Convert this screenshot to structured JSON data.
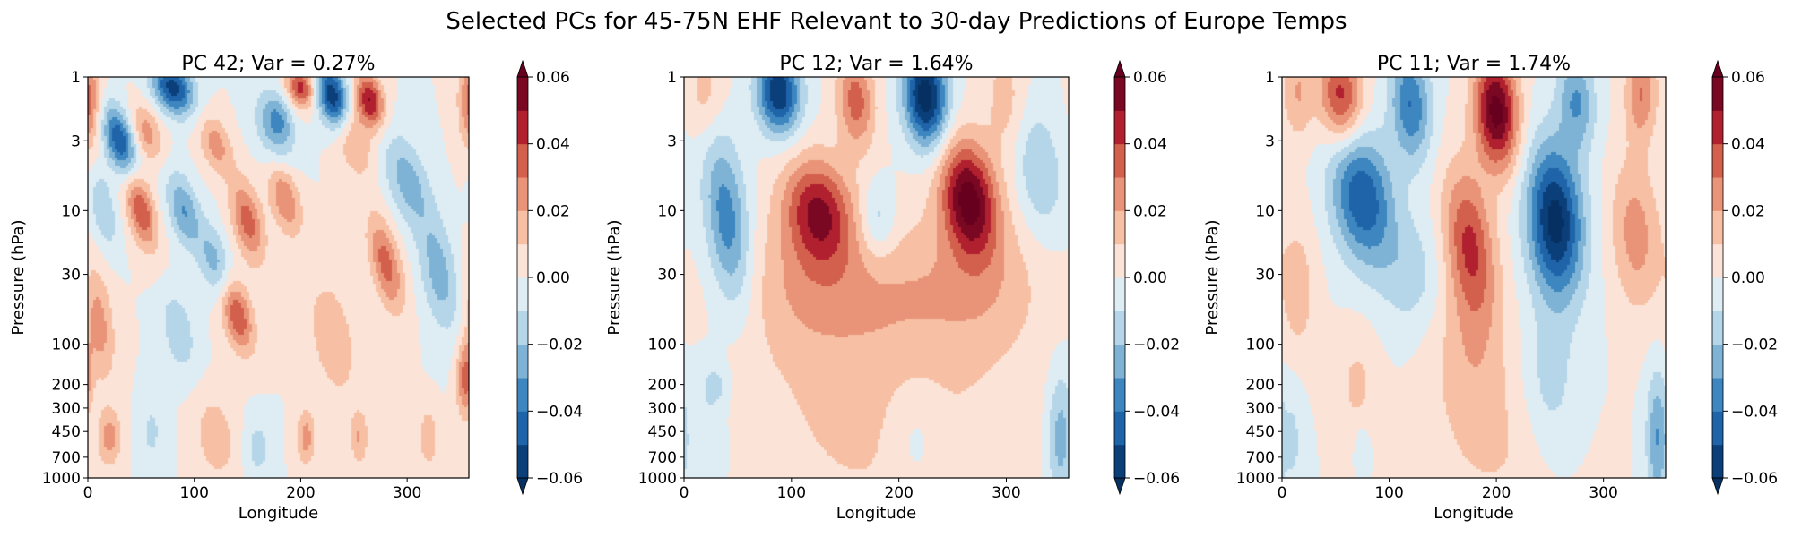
{
  "suptitle": "Selected PCs for 45-75N EHF Relevant to 30-day Predictions of Europe Temps",
  "levels": [
    -0.06,
    -0.05,
    -0.04,
    -0.03,
    -0.02,
    -0.01,
    0.0,
    0.01,
    0.02,
    0.03,
    0.04,
    0.05,
    0.06
  ],
  "band_colors": [
    "#0b3f7a",
    "#1f64a8",
    "#3d86c0",
    "#7fb3d6",
    "#b5d6e8",
    "#deecf4",
    "#fbe3d7",
    "#f7c0a4",
    "#e99478",
    "#d2604d",
    "#b1202e",
    "#7a0822"
  ],
  "colors": {
    "under": "#053061",
    "over": "#67001f",
    "axis": "#000000",
    "background": "#ffffff"
  },
  "chart_data": [
    {
      "type": "heatmap",
      "title": "PC 42; Var = 0.27%",
      "xlabel": "Longitude",
      "ylabel": "Pressure (hPa)",
      "xlim": [
        0,
        358
      ],
      "ylim": [
        1000,
        1
      ],
      "xticks": [
        0,
        100,
        200,
        300
      ],
      "yticks": [
        1,
        3,
        10,
        30,
        100,
        200,
        300,
        450,
        700,
        1000
      ],
      "colorbar_ticks": [
        "0.06",
        "0.04",
        "0.02",
        "0.00",
        "−0.02",
        "−0.04",
        "−0.06"
      ],
      "blobs": [
        {
          "lon": 80,
          "p": 1.2,
          "sx": 13,
          "sy": 0.14,
          "tilt": 0.45,
          "amp": -0.055
        },
        {
          "lon": 230,
          "p": 1.4,
          "sx": 10,
          "sy": 0.16,
          "tilt": 0.3,
          "amp": -0.06
        },
        {
          "lon": 200,
          "p": 1.2,
          "sx": 9,
          "sy": 0.1,
          "tilt": 0.3,
          "amp": 0.045
        },
        {
          "lon": 265,
          "p": 1.5,
          "sx": 9,
          "sy": 0.14,
          "tilt": 0.3,
          "amp": 0.05
        },
        {
          "lon": 30,
          "p": 3,
          "sx": 10,
          "sy": 0.18,
          "tilt": 0.45,
          "amp": -0.05
        },
        {
          "lon": 360,
          "p": 1.5,
          "sx": 8,
          "sy": 0.25,
          "tilt": 0,
          "amp": 0.035
        },
        {
          "lon": 55,
          "p": 2.6,
          "sx": 10,
          "sy": 0.15,
          "tilt": 0.4,
          "amp": 0.025
        },
        {
          "lon": 120,
          "p": 3.2,
          "sx": 10,
          "sy": 0.15,
          "tilt": 0.4,
          "amp": 0.025
        },
        {
          "lon": 175,
          "p": 2.5,
          "sx": 12,
          "sy": 0.2,
          "tilt": 0.4,
          "amp": -0.025
        },
        {
          "lon": 250,
          "p": 3,
          "sx": 12,
          "sy": 0.2,
          "tilt": 0.4,
          "amp": 0.02
        },
        {
          "lon": 300,
          "p": 6,
          "sx": 14,
          "sy": 0.25,
          "tilt": 0.5,
          "amp": -0.025
        },
        {
          "lon": 330,
          "p": 30,
          "sx": 12,
          "sy": 0.3,
          "tilt": 0.3,
          "amp": -0.025
        },
        {
          "lon": 50,
          "p": 10,
          "sx": 9,
          "sy": 0.2,
          "tilt": 0.4,
          "amp": 0.04
        },
        {
          "lon": 90,
          "p": 10,
          "sx": 10,
          "sy": 0.2,
          "tilt": 0.4,
          "amp": -0.03
        },
        {
          "lon": 150,
          "p": 12,
          "sx": 10,
          "sy": 0.22,
          "tilt": 0.4,
          "amp": 0.035
        },
        {
          "lon": 185,
          "p": 8,
          "sx": 10,
          "sy": 0.2,
          "tilt": 0.4,
          "amp": 0.03
        },
        {
          "lon": 120,
          "p": 25,
          "sx": 10,
          "sy": 0.2,
          "tilt": 0.4,
          "amp": -0.025
        },
        {
          "lon": 15,
          "p": 10,
          "sx": 8,
          "sy": 0.2,
          "tilt": 0.3,
          "amp": -0.02
        },
        {
          "lon": 280,
          "p": 25,
          "sx": 10,
          "sy": 0.25,
          "tilt": 0.4,
          "amp": 0.035
        },
        {
          "lon": 10,
          "p": 70,
          "sx": 10,
          "sy": 0.3,
          "tilt": 0.2,
          "amp": 0.025
        },
        {
          "lon": 140,
          "p": 60,
          "sx": 10,
          "sy": 0.2,
          "tilt": 0.4,
          "amp": 0.04
        },
        {
          "lon": 85,
          "p": 80,
          "sx": 10,
          "sy": 0.2,
          "tilt": 0.3,
          "amp": -0.02
        },
        {
          "lon": 230,
          "p": 90,
          "sx": 14,
          "sy": 0.3,
          "tilt": 0.3,
          "amp": 0.02
        },
        {
          "lon": 355,
          "p": 180,
          "sx": 6,
          "sy": 0.2,
          "tilt": 0,
          "amp": 0.035
        },
        {
          "lon": 20,
          "p": 500,
          "sx": 8,
          "sy": 0.15,
          "tilt": 0,
          "amp": 0.025
        },
        {
          "lon": 120,
          "p": 500,
          "sx": 12,
          "sy": 0.2,
          "tilt": 0.2,
          "amp": 0.02
        },
        {
          "lon": 205,
          "p": 500,
          "sx": 6,
          "sy": 0.15,
          "tilt": 0,
          "amp": 0.025
        },
        {
          "lon": 160,
          "p": 600,
          "sx": 8,
          "sy": 0.15,
          "tilt": 0,
          "amp": -0.015
        },
        {
          "lon": 255,
          "p": 500,
          "sx": 6,
          "sy": 0.15,
          "tilt": 0,
          "amp": 0.02
        },
        {
          "lon": 320,
          "p": 500,
          "sx": 6,
          "sy": 0.15,
          "tilt": 0,
          "amp": 0.02
        },
        {
          "lon": 60,
          "p": 450,
          "sx": 8,
          "sy": 0.2,
          "tilt": 0,
          "amp": -0.012
        },
        {
          "lon": 180,
          "p": 2,
          "sx": 8,
          "sy": 0.12,
          "tilt": 0.3,
          "amp": -0.015
        }
      ]
    },
    {
      "type": "heatmap",
      "title": "PC 12; Var = 1.64%",
      "xlabel": "Longitude",
      "ylabel": "Pressure (hPa)",
      "xlim": [
        0,
        358
      ],
      "ylim": [
        1000,
        1
      ],
      "xticks": [
        0,
        100,
        200,
        300
      ],
      "yticks": [
        1,
        3,
        10,
        30,
        100,
        200,
        300,
        450,
        700,
        1000
      ],
      "colorbar_ticks": [
        "0.06",
        "0.04",
        "0.02",
        "0.00",
        "−0.02",
        "−0.04",
        "−0.06"
      ],
      "blobs": [
        {
          "lon": 88,
          "p": 1.3,
          "sx": 14,
          "sy": 0.22,
          "tilt": 0.1,
          "amp": -0.06
        },
        {
          "lon": 225,
          "p": 1.4,
          "sx": 14,
          "sy": 0.26,
          "tilt": 0.1,
          "amp": -0.068
        },
        {
          "lon": 160,
          "p": 1.5,
          "sx": 12,
          "sy": 0.25,
          "tilt": 0.1,
          "amp": 0.035
        },
        {
          "lon": 20,
          "p": 1.3,
          "sx": 12,
          "sy": 0.25,
          "tilt": 0,
          "amp": 0.015
        },
        {
          "lon": 300,
          "p": 1.5,
          "sx": 14,
          "sy": 0.3,
          "tilt": 0.1,
          "amp": 0.015
        },
        {
          "lon": 125,
          "p": 10,
          "sx": 22,
          "sy": 0.28,
          "tilt": 0.2,
          "amp": 0.047
        },
        {
          "lon": 265,
          "p": 8,
          "sx": 18,
          "sy": 0.3,
          "tilt": 0.2,
          "amp": 0.062
        },
        {
          "lon": 40,
          "p": 12,
          "sx": 14,
          "sy": 0.45,
          "tilt": 0.2,
          "amp": -0.037
        },
        {
          "lon": 330,
          "p": 5,
          "sx": 16,
          "sy": 0.35,
          "tilt": 0.2,
          "amp": -0.02
        },
        {
          "lon": 180,
          "p": 12,
          "sx": 12,
          "sy": 0.2,
          "tilt": 0,
          "amp": -0.02
        },
        {
          "lon": 190,
          "p": 40,
          "sx": 55,
          "sy": 0.4,
          "tilt": 0,
          "amp": 0.015
        },
        {
          "lon": 280,
          "p": 35,
          "sx": 40,
          "sy": 0.4,
          "tilt": 0,
          "amp": 0.015
        },
        {
          "lon": 110,
          "p": 35,
          "sx": 40,
          "sy": 0.4,
          "tilt": 0,
          "amp": 0.015
        },
        {
          "lon": 180,
          "p": 400,
          "sx": 90,
          "sy": 0.6,
          "tilt": 0,
          "amp": 0.012
        },
        {
          "lon": 350,
          "p": 500,
          "sx": 8,
          "sy": 0.35,
          "tilt": 0,
          "amp": -0.025
        },
        {
          "lon": 20,
          "p": 500,
          "sx": 14,
          "sy": 0.4,
          "tilt": 0,
          "amp": -0.012
        },
        {
          "lon": 30,
          "p": 200,
          "sx": 8,
          "sy": 0.1,
          "tilt": 0,
          "amp": -0.012
        },
        {
          "lon": 215,
          "p": 500,
          "sx": 18,
          "sy": 0.3,
          "tilt": 0,
          "amp": -0.012
        }
      ]
    },
    {
      "type": "heatmap",
      "title": "PC 11; Var = 1.74%",
      "xlabel": "Longitude",
      "ylabel": "Pressure (hPa)",
      "xlim": [
        0,
        358
      ],
      "ylim": [
        1000,
        1
      ],
      "xticks": [
        0,
        100,
        200,
        300
      ],
      "yticks": [
        1,
        3,
        10,
        30,
        100,
        200,
        300,
        450,
        700,
        1000
      ],
      "colorbar_ticks": [
        "0.06",
        "0.04",
        "0.02",
        "0.00",
        "−0.02",
        "−0.04",
        "−0.06"
      ],
      "blobs": [
        {
          "lon": 55,
          "p": 1.4,
          "sx": 14,
          "sy": 0.25,
          "tilt": 0.1,
          "amp": 0.045
        },
        {
          "lon": 120,
          "p": 1.6,
          "sx": 13,
          "sy": 0.3,
          "tilt": 0.1,
          "amp": -0.04
        },
        {
          "lon": 200,
          "p": 1.8,
          "sx": 14,
          "sy": 0.3,
          "tilt": 0.1,
          "amp": 0.065
        },
        {
          "lon": 275,
          "p": 1.5,
          "sx": 12,
          "sy": 0.25,
          "tilt": 0.1,
          "amp": -0.03
        },
        {
          "lon": 335,
          "p": 1.3,
          "sx": 10,
          "sy": 0.25,
          "tilt": 0,
          "amp": 0.03
        },
        {
          "lon": 15,
          "p": 1.3,
          "sx": 10,
          "sy": 0.25,
          "tilt": 0,
          "amp": 0.02
        },
        {
          "lon": 75,
          "p": 8,
          "sx": 20,
          "sy": 0.35,
          "tilt": 0.2,
          "amp": -0.05
        },
        {
          "lon": 255,
          "p": 12,
          "sx": 18,
          "sy": 0.4,
          "tilt": 0.1,
          "amp": -0.065
        },
        {
          "lon": 175,
          "p": 18,
          "sx": 16,
          "sy": 0.4,
          "tilt": 0.2,
          "amp": 0.042
        },
        {
          "lon": 330,
          "p": 15,
          "sx": 16,
          "sy": 0.4,
          "tilt": 0.1,
          "amp": 0.025
        },
        {
          "lon": 15,
          "p": 40,
          "sx": 12,
          "sy": 0.4,
          "tilt": 0,
          "amp": 0.015
        },
        {
          "lon": 120,
          "p": 30,
          "sx": 20,
          "sy": 0.3,
          "tilt": 0,
          "amp": -0.015
        },
        {
          "lon": 175,
          "p": 120,
          "sx": 25,
          "sy": 0.4,
          "tilt": 0,
          "amp": 0.015
        },
        {
          "lon": 250,
          "p": 200,
          "sx": 18,
          "sy": 0.4,
          "tilt": 0,
          "amp": -0.015
        },
        {
          "lon": 350,
          "p": 500,
          "sx": 7,
          "sy": 0.35,
          "tilt": 0,
          "amp": -0.03
        },
        {
          "lon": 70,
          "p": 200,
          "sx": 14,
          "sy": 0.3,
          "tilt": 0,
          "amp": 0.012
        },
        {
          "lon": 200,
          "p": 600,
          "sx": 40,
          "sy": 0.4,
          "tilt": 0,
          "amp": 0.01
        },
        {
          "lon": 75,
          "p": 600,
          "sx": 5,
          "sy": 0.12,
          "tilt": 0,
          "amp": -0.012
        },
        {
          "lon": 10,
          "p": 500,
          "sx": 8,
          "sy": 0.35,
          "tilt": 0,
          "amp": -0.012
        }
      ]
    }
  ]
}
